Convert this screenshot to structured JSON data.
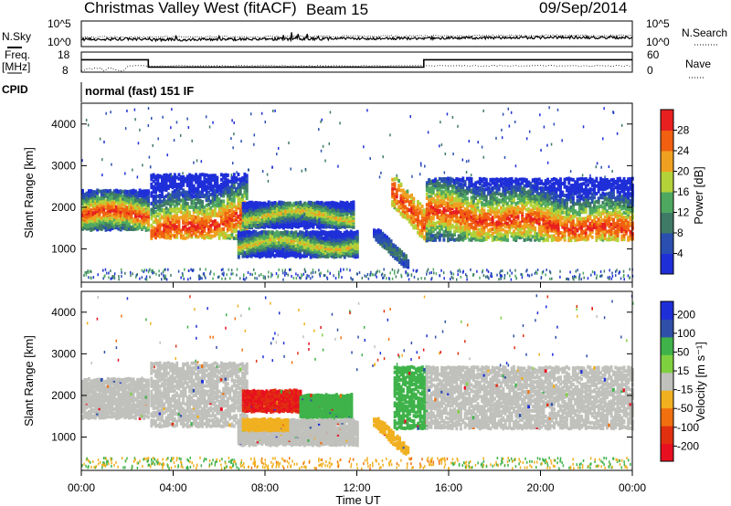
{
  "header": {
    "station": "Christmas Valley West (fitACF)",
    "beam": "Beam 15",
    "date": "09/Sep/2014"
  },
  "noise_panel": {
    "left_label": "N.Sky",
    "right_label": "N.Search",
    "left_ticks": [
      "10^5",
      "10^0"
    ],
    "right_ticks": [
      "10^5",
      "10^0"
    ]
  },
  "freq_panel": {
    "left_label_line1": "Freq.",
    "left_label_line2": "[MHz]",
    "right_label": "Nave",
    "left_ticks": [
      "18",
      "8"
    ],
    "right_ticks": [
      "60",
      "0"
    ],
    "freq_steps": [
      {
        "from": "00:00",
        "to": "02:55",
        "value": 14.2
      },
      {
        "from": "02:55",
        "to": "14:55",
        "value": 10.5
      },
      {
        "from": "14:55",
        "to": "24:00",
        "value": 14.2
      }
    ]
  },
  "cpid": {
    "label": "CPID",
    "text": "normal (fast) 151 IF"
  },
  "colors": {
    "power": [
      "#1f2fd8",
      "#2a4fb0",
      "#3f7a66",
      "#4fa860",
      "#b3d23a",
      "#f0a020",
      "#f06010",
      "#e82020"
    ],
    "velocity": [
      "#1f2fd8",
      "#2f4fa8",
      "#3fb34a",
      "#7fd040",
      "#c0c0bc",
      "#f0b020",
      "#f07010",
      "#e03010",
      "#e81020"
    ]
  },
  "chart_data": [
    {
      "type": "heatmap",
      "name": "power",
      "ylabel": "Slant Range [km]",
      "yticks": [
        "1000",
        "2000",
        "3000",
        "4000"
      ],
      "ylim": [
        200,
        4500
      ],
      "colorbar_label": "Power [dB]",
      "colorbar_ticks": [
        "4",
        "8",
        "12",
        "16",
        "20",
        "24",
        "28"
      ],
      "regions": [
        {
          "t0": 0.0,
          "t1": 2.95,
          "r0": 1450,
          "r1": 2400,
          "peak": 1800,
          "kind": "strong"
        },
        {
          "t0": 3.0,
          "t1": 7.2,
          "r0": 1250,
          "r1": 2800,
          "peak": 1500,
          "kind": "strong"
        },
        {
          "t0": 7.0,
          "t1": 11.8,
          "r0": 1500,
          "r1": 2100,
          "peak": 1800,
          "kind": "medium"
        },
        {
          "t0": 6.8,
          "t1": 12.0,
          "r0": 800,
          "r1": 1400,
          "peak": 1100,
          "kind": "medium"
        },
        {
          "t0": 12.7,
          "t1": 14.2,
          "r0": 550,
          "r1": 1450,
          "peak": 900,
          "kind": "weak"
        },
        {
          "t0": 13.5,
          "t1": 15.0,
          "r0": 1100,
          "r1": 2700,
          "peak": 1800,
          "kind": "strong"
        },
        {
          "t0": 15.0,
          "t1": 24.0,
          "r0": 1200,
          "r1": 2700,
          "peak": 1650,
          "kind": "strong"
        }
      ]
    },
    {
      "type": "heatmap",
      "name": "velocity",
      "ylabel": "Slant Range [km]",
      "yticks": [
        "1000",
        "2000",
        "3000",
        "4000"
      ],
      "ylim": [
        200,
        4500
      ],
      "colorbar_label": "Velocity [m s⁻¹]",
      "colorbar_ticks": [
        "200",
        "100",
        "50",
        "15",
        "-15",
        "-50",
        "-100",
        "-200"
      ],
      "xticks": [
        "00:00",
        "04:00",
        "08:00",
        "12:00",
        "16:00",
        "20:00",
        "00:00"
      ],
      "xlabel": "Time UT",
      "regions": [
        {
          "t0": 0.0,
          "t1": 2.95,
          "r0": 1450,
          "r1": 2400,
          "v": 0
        },
        {
          "t0": 3.0,
          "t1": 7.2,
          "r0": 1250,
          "r1": 2800,
          "v": 0
        },
        {
          "t0": 7.0,
          "t1": 9.5,
          "r0": 1600,
          "r1": 2100,
          "v": -150
        },
        {
          "t0": 9.5,
          "t1": 11.8,
          "r0": 1450,
          "r1": 2000,
          "v": 40
        },
        {
          "t0": 6.8,
          "t1": 12.0,
          "r0": 800,
          "r1": 1400,
          "v": 0
        },
        {
          "t0": 7.0,
          "t1": 9.0,
          "r0": 1150,
          "r1": 1400,
          "v": -40
        },
        {
          "t0": 13.6,
          "t1": 15.0,
          "r0": 1200,
          "r1": 2700,
          "v": 40
        },
        {
          "t0": 12.7,
          "t1": 14.2,
          "r0": 550,
          "r1": 1450,
          "v": -40
        },
        {
          "t0": 15.0,
          "t1": 24.0,
          "r0": 1200,
          "r1": 2700,
          "v": 0
        }
      ]
    }
  ]
}
